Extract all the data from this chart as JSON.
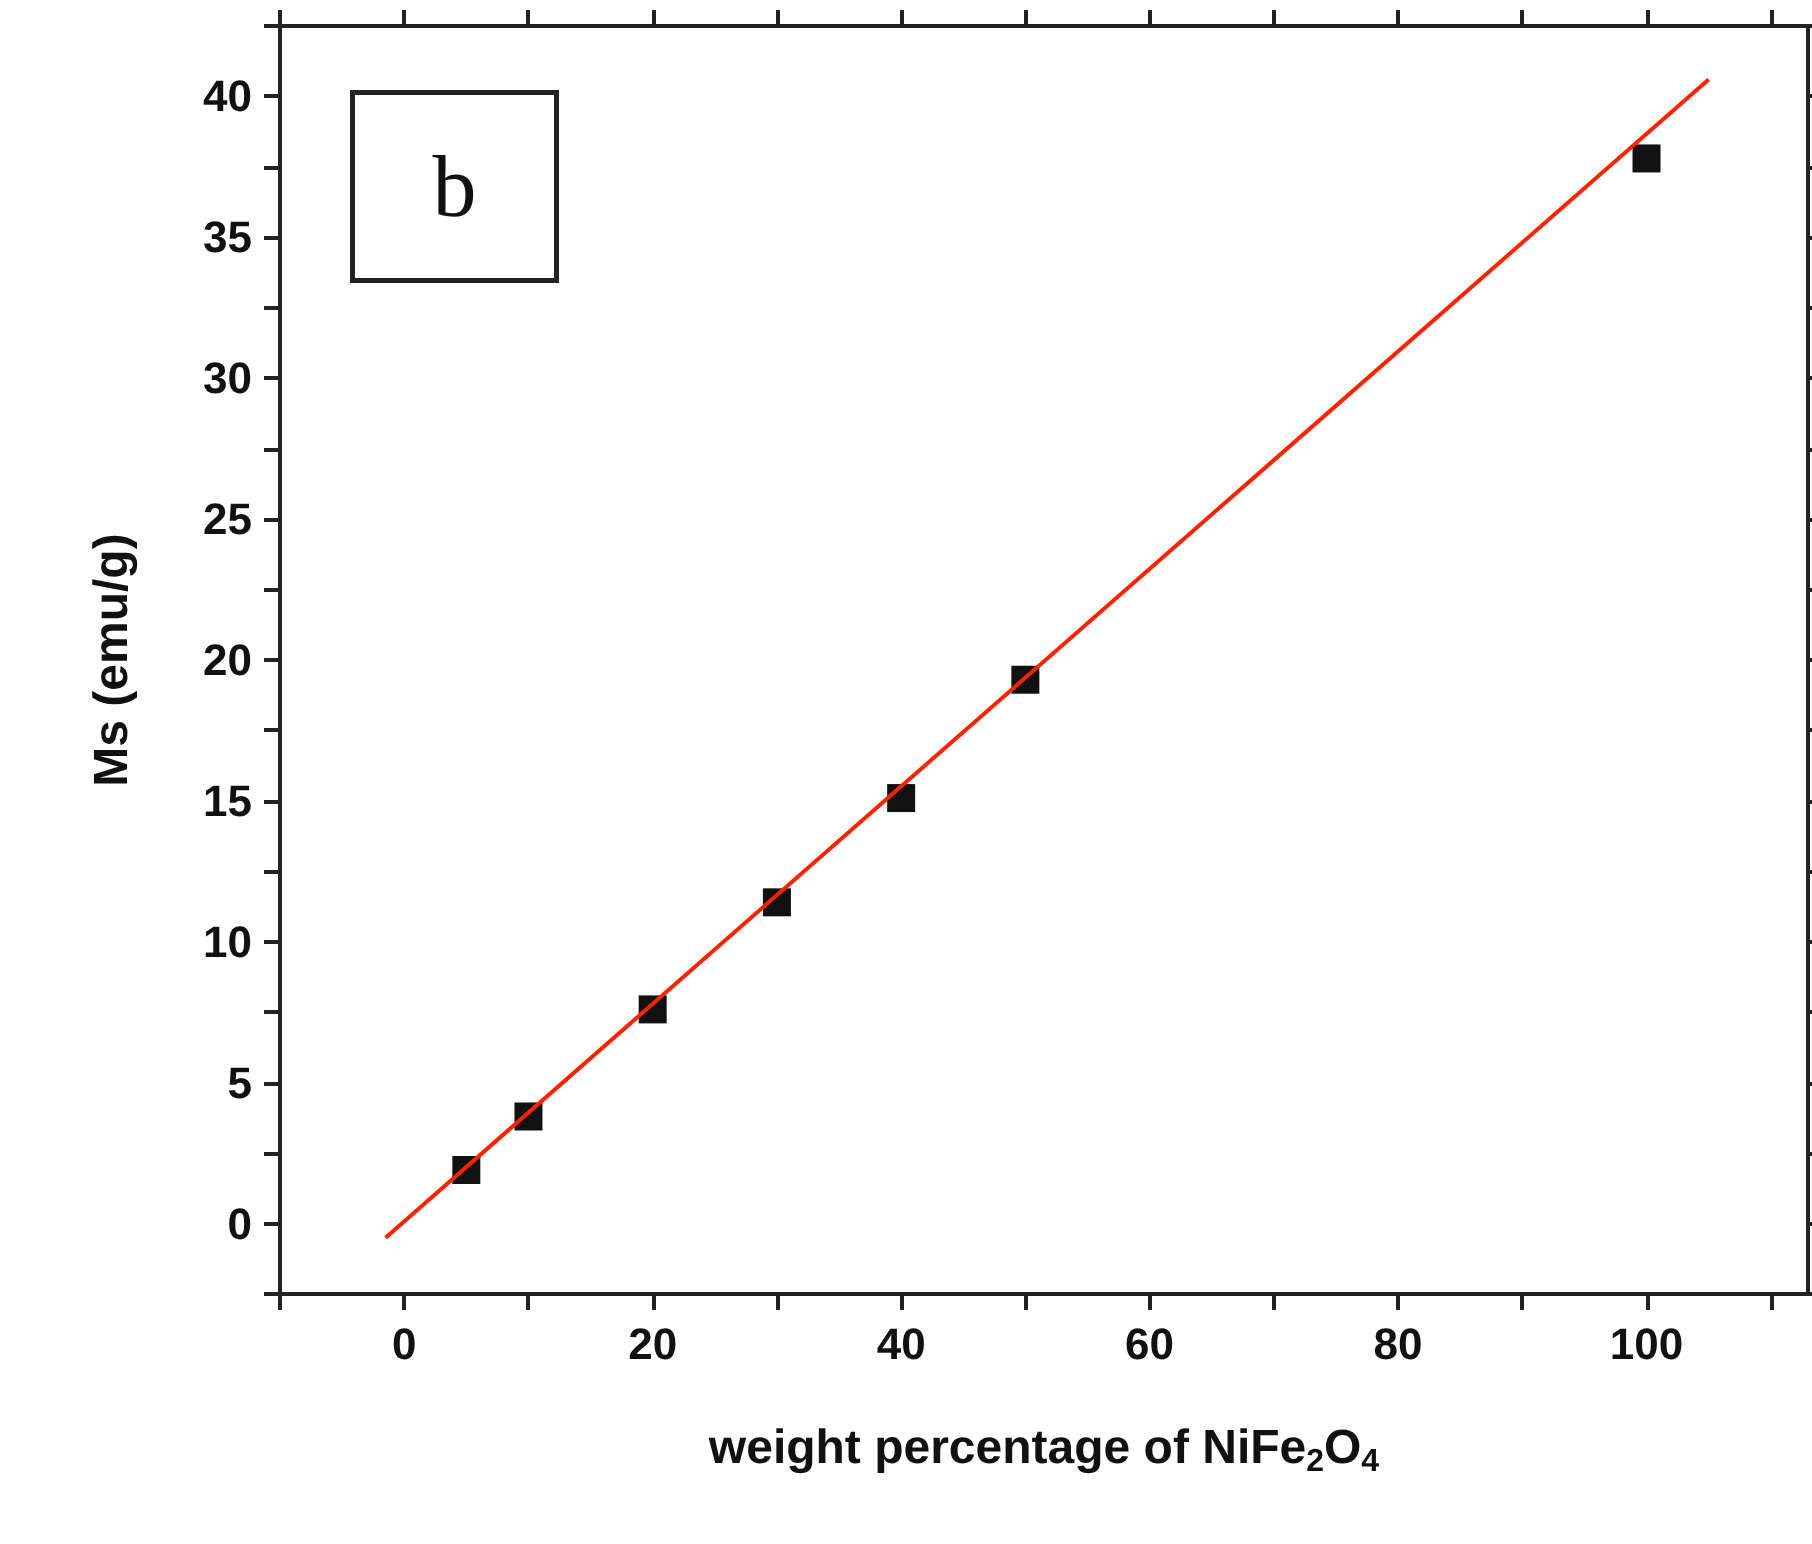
{
  "chart_data": {
    "type": "scatter",
    "xlabel": "weight percentage of NiFe$_{2}$O$_{4}$",
    "ylabel": "Ms (emu/g)",
    "annotations": [
      "b"
    ],
    "x": [
      5,
      10,
      20,
      30,
      40,
      50,
      100
    ],
    "series": [
      {
        "color": "#111111",
        "marker": "square",
        "values": [
          1.9,
          3.8,
          7.6,
          11.4,
          15.1,
          19.3,
          37.8
        ]
      },
      {
        "type": "line",
        "color": "#ff2200",
        "marker": "none",
        "line_style": "solid",
        "x": [
          -1.5,
          105
        ],
        "values": [
          -0.5,
          40.6
        ]
      }
    ],
    "xlim": [
      -10,
      113
    ],
    "ylim": [
      -2.5,
      42.5
    ],
    "xticks": [
      {
        "value": -10,
        "label": null
      },
      0,
      {
        "value": 10,
        "label": null
      },
      20,
      {
        "value": 30,
        "label": null
      },
      40,
      {
        "value": 50,
        "label": null
      },
      60,
      {
        "value": 70,
        "label": null
      },
      80,
      {
        "value": 90,
        "label": null
      },
      100,
      {
        "value": 110,
        "label": null
      }
    ],
    "yticks": [
      {
        "value": -2.5,
        "label": null
      },
      0,
      {
        "value": 2.5,
        "label": null
      },
      5,
      {
        "value": 7.5,
        "label": null
      },
      10,
      {
        "value": 12.5,
        "label": null
      },
      15,
      {
        "value": 17.5,
        "label": null
      },
      20,
      {
        "value": 22.5,
        "label": null
      },
      25,
      {
        "value": 27.5,
        "label": null
      },
      30,
      {
        "value": 32.5,
        "label": null
      },
      35,
      {
        "value": 37.5,
        "label": null
      },
      40,
      {
        "value": 42.5,
        "label": null
      }
    ],
    "grid": false
  }
}
